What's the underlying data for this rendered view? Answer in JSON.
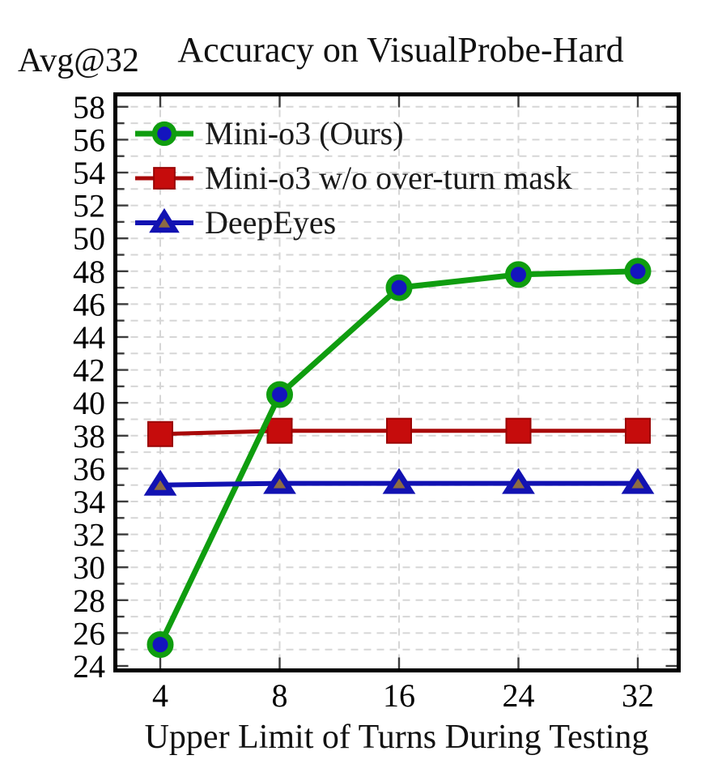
{
  "figure": {
    "title": "Accuracy on VisualProbe-Hard",
    "y_unit_label": "Avg@32",
    "x_axis_title": "Upper Limit of Turns During Testing"
  },
  "chart_data": {
    "type": "line",
    "title": "Accuracy on VisualProbe-Hard",
    "xlabel": "Upper Limit of Turns During Testing",
    "ylabel": "Avg@32",
    "categories": [
      4,
      8,
      16,
      24,
      32
    ],
    "x_tick_labels": [
      "4",
      "8",
      "16",
      "24",
      "32"
    ],
    "ylim": [
      24,
      58
    ],
    "y_major_step": 2,
    "y_minor_step": 1,
    "grid": "dashed-gray, horizontal every 1 unit, vertical at each x tick",
    "legend_position": "top-left-inside, no frame",
    "axes_frame": "black thick border, inward ticks on all four sides",
    "series": [
      {
        "name": "Mini-o3 (Ours)",
        "marker": "circle",
        "line_color": "#0F9D0F",
        "marker_fill": "#1414BE",
        "marker_edge": "#0F9D0F",
        "values": [
          25.3,
          40.5,
          47.0,
          47.8,
          48.0
        ]
      },
      {
        "name": "Mini-o3 w/o over-turn mask",
        "marker": "square",
        "line_color": "#A80808",
        "marker_fill": "#C60C0C",
        "marker_edge": "#9B0505",
        "values": [
          38.1,
          38.3,
          38.3,
          38.3,
          38.3
        ]
      },
      {
        "name": "DeepEyes",
        "marker": "triangle",
        "line_color": "#1212B2",
        "marker_fill": "#8C6B44",
        "marker_edge": "#1212B2",
        "values": [
          35.0,
          35.1,
          35.1,
          35.1,
          35.1
        ]
      }
    ],
    "style_colors": {
      "grid": "#D6D6D6",
      "tick": "#3D3D3D",
      "axis": "#000000"
    }
  }
}
